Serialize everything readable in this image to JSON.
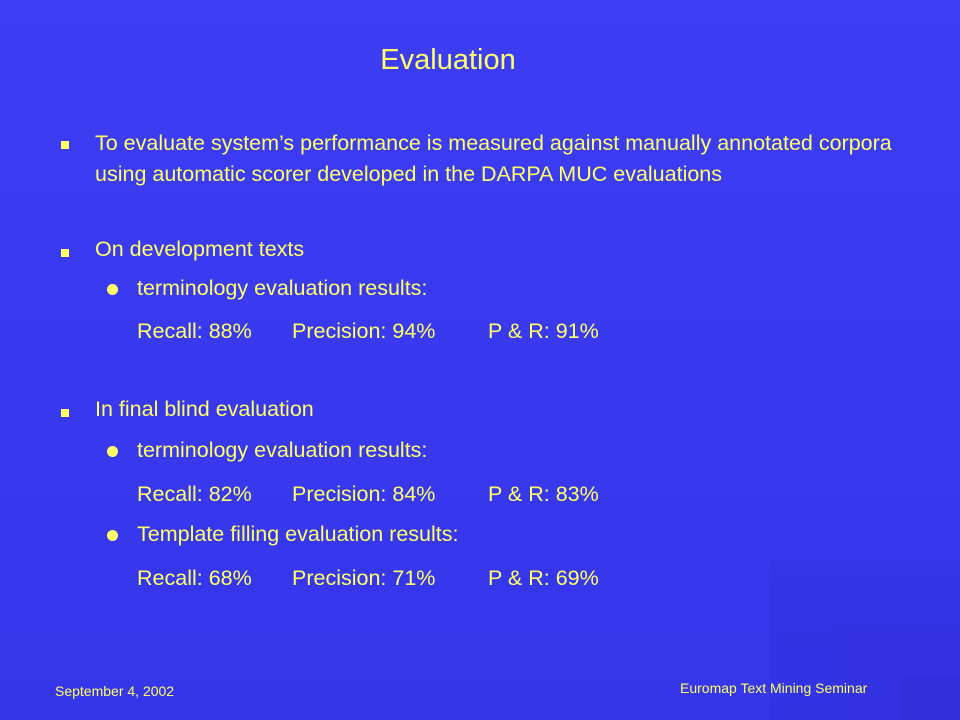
{
  "slide": {
    "title": "Evaluation",
    "bullets": [
      "To evaluate system’s performance is measured against manually annotated corpora using automatic scorer developed in the DARPA MUC evaluations",
      "On development texts",
      "In final blind evaluation"
    ],
    "dev": {
      "sub": "terminology evaluation results:",
      "recall": "Recall: 88%",
      "precision": "Precision: 94%",
      "pr": "P & R: 91%"
    },
    "final": {
      "sub1": "terminology evaluation results:",
      "r1_recall": "Recall: 82%",
      "r1_precision": "Precision: 84%",
      "r1_pr": "P & R: 83%",
      "sub2": "Template filling evaluation results:",
      "r2_recall": "Recall: 68%",
      "r2_precision": "Precision: 71%",
      "r2_pr": "P & R: 69%"
    }
  },
  "footer": {
    "date": "September 4, 2002",
    "seminar": "Euromap Text Mining Seminar"
  },
  "colors": {
    "background": "#3a3af2",
    "text": "#ffff66"
  }
}
